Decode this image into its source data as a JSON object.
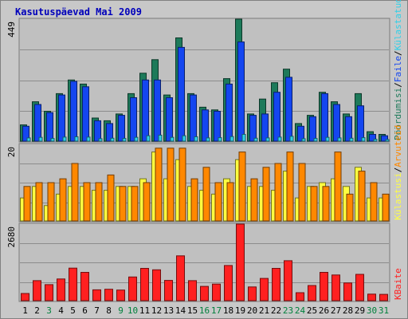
{
  "chart_data": {
    "type": "bar",
    "title": "Kasutuspäevad Mai 2009",
    "x": [
      "1",
      "2",
      "3",
      "4",
      "5",
      "6",
      "7",
      "8",
      "9",
      "10",
      "11",
      "12",
      "13",
      "14",
      "15",
      "16",
      "17",
      "18",
      "19",
      "20",
      "21",
      "22",
      "23",
      "24",
      "25",
      "26",
      "27",
      "28",
      "29",
      "30",
      "31"
    ],
    "weekend_days": [
      "3",
      "9",
      "10",
      "16",
      "17",
      "23",
      "24",
      "30",
      "31"
    ],
    "panels": [
      {
        "id": "top",
        "ylim": [
          0,
          449
        ],
        "max_label": "449",
        "grid": true,
        "series": [
          {
            "name": "Pöördumisi",
            "color": "#1d7a5a",
            "values": [
              60,
              145,
              110,
              175,
              225,
              210,
              85,
              75,
              100,
              175,
              250,
              300,
              170,
              380,
              175,
              125,
              115,
              230,
              449,
              100,
              155,
              215,
              265,
              65,
              95,
              180,
              145,
              100,
              175,
              35,
              25
            ]
          },
          {
            "name": "Faile",
            "color": "#1446f0",
            "values": [
              55,
              135,
              105,
              170,
              220,
              200,
              75,
              65,
              95,
              160,
              225,
              225,
              160,
              345,
              170,
              115,
              110,
              210,
              365,
              95,
              100,
              180,
              235,
              55,
              90,
              175,
              135,
              90,
              130,
              25,
              20
            ]
          },
          {
            "name": "Külastatud lehti",
            "color": "#30d0e8",
            "values": [
              12,
              14,
              10,
              15,
              16,
              15,
              9,
              11,
              10,
              14,
              20,
              22,
              14,
              20,
              16,
              12,
              13,
              17,
              25,
              11,
              12,
              15,
              18,
              9,
              10,
              14,
              12,
              11,
              13,
              7,
              6
            ]
          }
        ]
      },
      {
        "id": "middle",
        "ylim": [
          0,
          20
        ],
        "max_label": "20",
        "grid": true,
        "series": [
          {
            "name": "Külastusi",
            "color": "#ffff40",
            "values": [
              6,
              9,
              4,
              7,
              9,
              9,
              8,
              8,
              9,
              9,
              11,
              18,
              11,
              16,
              9,
              8,
              7,
              11,
              16,
              9,
              9,
              8,
              13,
              6,
              9,
              10,
              11,
              9,
              14,
              6,
              6
            ]
          },
          {
            "name": "Arvuteid",
            "color": "#ff8800",
            "values": [
              9,
              10,
              10,
              11,
              15,
              10,
              10,
              12,
              9,
              9,
              10,
              19,
              19,
              19,
              11,
              14,
              10,
              10,
              18,
              11,
              14,
              15,
              18,
              15,
              9,
              9,
              18,
              7,
              13,
              10,
              7
            ]
          }
        ]
      },
      {
        "id": "bottom",
        "ylim": [
          0,
          2680
        ],
        "max_label": "2680",
        "grid": true,
        "series": [
          {
            "name": "KBaite",
            "color": "#ff2020",
            "values": [
              250,
              700,
              560,
              760,
              1140,
              990,
              380,
              400,
              370,
              830,
              1130,
              1080,
              710,
              1570,
              700,
              500,
              580,
              1230,
              2680,
              480,
              780,
              1130,
              1400,
              280,
              530,
              990,
              900,
              620,
              920,
              230,
              220
            ]
          }
        ]
      }
    ],
    "legend_right_top": [
      "Pöördumisi",
      "Faile",
      "Külastatud lehti"
    ],
    "legend_right_middle": [
      "Külastusi",
      "Arvuteid"
    ],
    "legend_right_bottom": [
      "KBaite"
    ],
    "legend_separator": "/",
    "colors": {
      "background": "#c8c8c8",
      "plot_background": "#c0c0c0",
      "grid": "#8c8c8c",
      "title": "#0000bb",
      "weekday_label": "#000000",
      "weekend_label": "#00803c"
    }
  }
}
